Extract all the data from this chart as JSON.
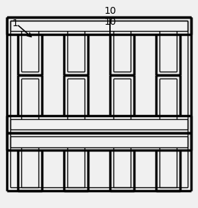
{
  "bg_color": "#f0f0f0",
  "line_color": "#000000",
  "outer_lw": 2.5,
  "inner_lw": 1.0,
  "figsize": [
    2.88,
    3.02
  ],
  "dpi": 100,
  "label1": "1",
  "label2": "10",
  "n_cols": 4,
  "n_rows": 3
}
